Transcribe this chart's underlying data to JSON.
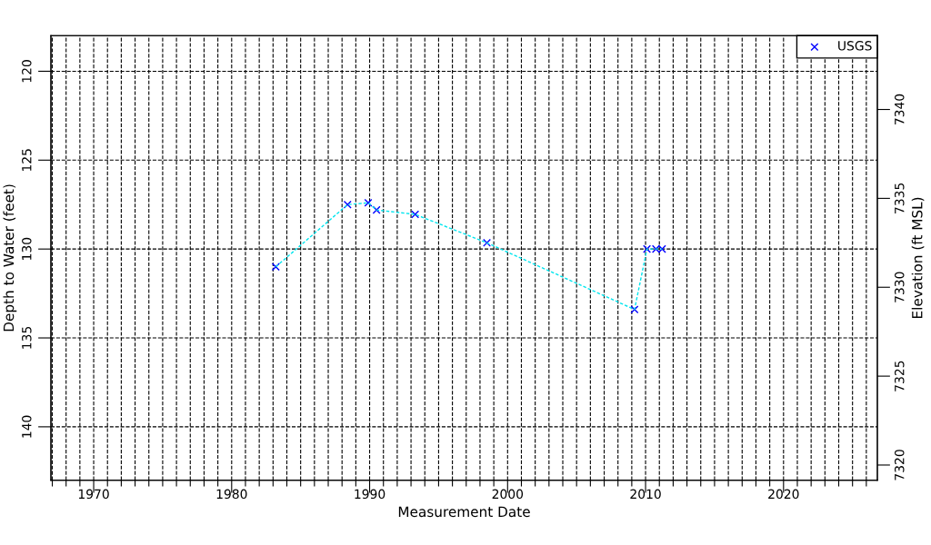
{
  "chart_data": {
    "type": "line",
    "xlabel": "Measurement Date",
    "ylabel": "Depth to Water (feet)",
    "y2label": "Elevation (ft MSL)",
    "x": [
      1983.2,
      1988.4,
      1989.9,
      1990.5,
      1993.3,
      1998.5,
      2009.2,
      2010.1,
      2010.75,
      2011.2
    ],
    "series": [
      {
        "color": "#00e5ee",
        "line_style": "dashed",
        "marker": "none",
        "values": [
          131.0,
          127.5,
          127.4,
          127.8,
          128.05,
          129.65,
          133.4,
          130.0,
          130.0,
          130.0
        ]
      },
      {
        "type": "scatter",
        "name": "USGS",
        "color": "#0000ff",
        "marker": "cross",
        "values": [
          131.0,
          127.5,
          127.4,
          127.8,
          128.05,
          129.65,
          133.4,
          130.0,
          130.0,
          130.0
        ]
      }
    ],
    "xlim": [
      1966.9,
      2026.8
    ],
    "xticks": [
      {
        "value": 1967,
        "label": null
      },
      {
        "value": 1968,
        "label": null
      },
      {
        "value": 1969,
        "label": null
      },
      1970,
      {
        "value": 1971,
        "label": null
      },
      {
        "value": 1972,
        "label": null
      },
      {
        "value": 1973,
        "label": null
      },
      {
        "value": 1974,
        "label": null
      },
      {
        "value": 1975,
        "label": null
      },
      {
        "value": 1976,
        "label": null
      },
      {
        "value": 1977,
        "label": null
      },
      {
        "value": 1978,
        "label": null
      },
      {
        "value": 1979,
        "label": null
      },
      1980,
      {
        "value": 1981,
        "label": null
      },
      {
        "value": 1982,
        "label": null
      },
      {
        "value": 1983,
        "label": null
      },
      {
        "value": 1984,
        "label": null
      },
      {
        "value": 1985,
        "label": null
      },
      {
        "value": 1986,
        "label": null
      },
      {
        "value": 1987,
        "label": null
      },
      {
        "value": 1988,
        "label": null
      },
      {
        "value": 1989,
        "label": null
      },
      1990,
      {
        "value": 1991,
        "label": null
      },
      {
        "value": 1992,
        "label": null
      },
      {
        "value": 1993,
        "label": null
      },
      {
        "value": 1994,
        "label": null
      },
      {
        "value": 1995,
        "label": null
      },
      {
        "value": 1996,
        "label": null
      },
      {
        "value": 1997,
        "label": null
      },
      {
        "value": 1998,
        "label": null
      },
      {
        "value": 1999,
        "label": null
      },
      2000,
      {
        "value": 2001,
        "label": null
      },
      {
        "value": 2002,
        "label": null
      },
      {
        "value": 2003,
        "label": null
      },
      {
        "value": 2004,
        "label": null
      },
      {
        "value": 2005,
        "label": null
      },
      {
        "value": 2006,
        "label": null
      },
      {
        "value": 2007,
        "label": null
      },
      {
        "value": 2008,
        "label": null
      },
      {
        "value": 2009,
        "label": null
      },
      2010,
      {
        "value": 2011,
        "label": null
      },
      {
        "value": 2012,
        "label": null
      },
      {
        "value": 2013,
        "label": null
      },
      {
        "value": 2014,
        "label": null
      },
      {
        "value": 2015,
        "label": null
      },
      {
        "value": 2016,
        "label": null
      },
      {
        "value": 2017,
        "label": null
      },
      {
        "value": 2018,
        "label": null
      },
      {
        "value": 2019,
        "label": null
      },
      2020,
      {
        "value": 2021,
        "label": null
      },
      {
        "value": 2022,
        "label": null
      },
      {
        "value": 2023,
        "label": null
      },
      {
        "value": 2024,
        "label": null
      },
      {
        "value": 2025,
        "label": null
      },
      {
        "value": 2026,
        "label": null
      }
    ],
    "ylim": [
      143,
      118
    ],
    "yticks": [
      120,
      125,
      130,
      135,
      140
    ],
    "y2lim": [
      7319.15,
      7344.15
    ],
    "y2ticks": [
      7320,
      7325,
      7330,
      7335,
      7340
    ],
    "grid": true,
    "legend": "top right"
  }
}
